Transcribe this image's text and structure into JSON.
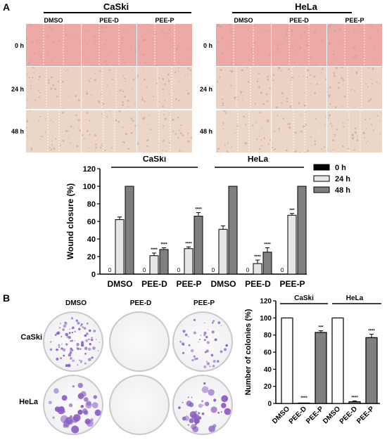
{
  "panel_a": {
    "letter": "A",
    "groups": [
      {
        "title": "CaSki",
        "columns": [
          "DMSO",
          "PEE-D",
          "PEE-P"
        ]
      },
      {
        "title": "HeLa",
        "columns": [
          "DMSO",
          "PEE-D",
          "PEE-P"
        ]
      }
    ],
    "rows": [
      "0 h",
      "24 h",
      "48 h"
    ]
  },
  "panel_b": {
    "letter": "B",
    "columns": [
      "DMSO",
      "PEE-D",
      "PEE-P"
    ],
    "rows": [
      "CaSki",
      "HeLa"
    ]
  },
  "colors": {
    "black": "#000000",
    "white": "#ffffff",
    "gray": "#7f7f7f",
    "light": "#d9d9d9"
  },
  "chart_data": [
    {
      "type": "bar",
      "ylabel": "Wound closure (%)",
      "ylim": [
        0,
        120
      ],
      "yticks": [
        0,
        20,
        40,
        60,
        80,
        100,
        120
      ],
      "group_labels": [
        "CaSki",
        "HeLa"
      ],
      "categories": [
        "DMSO",
        "PEE-D",
        "PEE-P",
        "DMSO",
        "PEE-D",
        "PEE-P"
      ],
      "legend_position": "right",
      "series": [
        {
          "name": "0 h",
          "color": "#000000",
          "values": [
            0,
            0,
            0,
            0,
            0,
            0
          ],
          "errors": [
            0,
            0,
            0,
            0,
            0,
            0
          ],
          "labels": [
            "0",
            "0",
            "0",
            "0",
            "0",
            "0"
          ]
        },
        {
          "name": "24 h",
          "color": "#e6e6e6",
          "values": [
            62,
            21,
            29,
            51,
            12,
            67
          ],
          "errors": [
            3,
            3,
            2,
            4,
            4,
            2
          ],
          "significance": [
            "",
            "****",
            "****",
            "",
            "****",
            "***"
          ]
        },
        {
          "name": "48 h",
          "color": "#7f7f7f",
          "values": [
            100,
            28,
            66,
            100,
            25,
            100
          ],
          "errors": [
            0,
            2,
            4,
            0,
            5,
            0
          ],
          "significance": [
            "",
            "****",
            "****",
            "",
            "****",
            ""
          ]
        }
      ]
    },
    {
      "type": "bar",
      "ylabel": "Number of colonies (%)",
      "ylim": [
        0,
        120
      ],
      "yticks": [
        0,
        20,
        40,
        60,
        80,
        100,
        120
      ],
      "group_labels": [
        "CaSki",
        "HeLa"
      ],
      "categories": [
        "DMSO",
        "PEE-D",
        "PEE-P",
        "DMSO",
        "PEE-D",
        "PEE-P"
      ],
      "values": [
        100,
        0.5,
        83,
        100,
        2,
        77
      ],
      "errors": [
        0,
        0,
        2,
        0,
        1,
        4
      ],
      "colors": [
        "#ffffff",
        "#ffffff",
        "#7f7f7f",
        "#ffffff",
        "#7f7f7f",
        "#7f7f7f"
      ],
      "significance": [
        "",
        "****",
        "***",
        "",
        "****",
        "****"
      ]
    }
  ]
}
